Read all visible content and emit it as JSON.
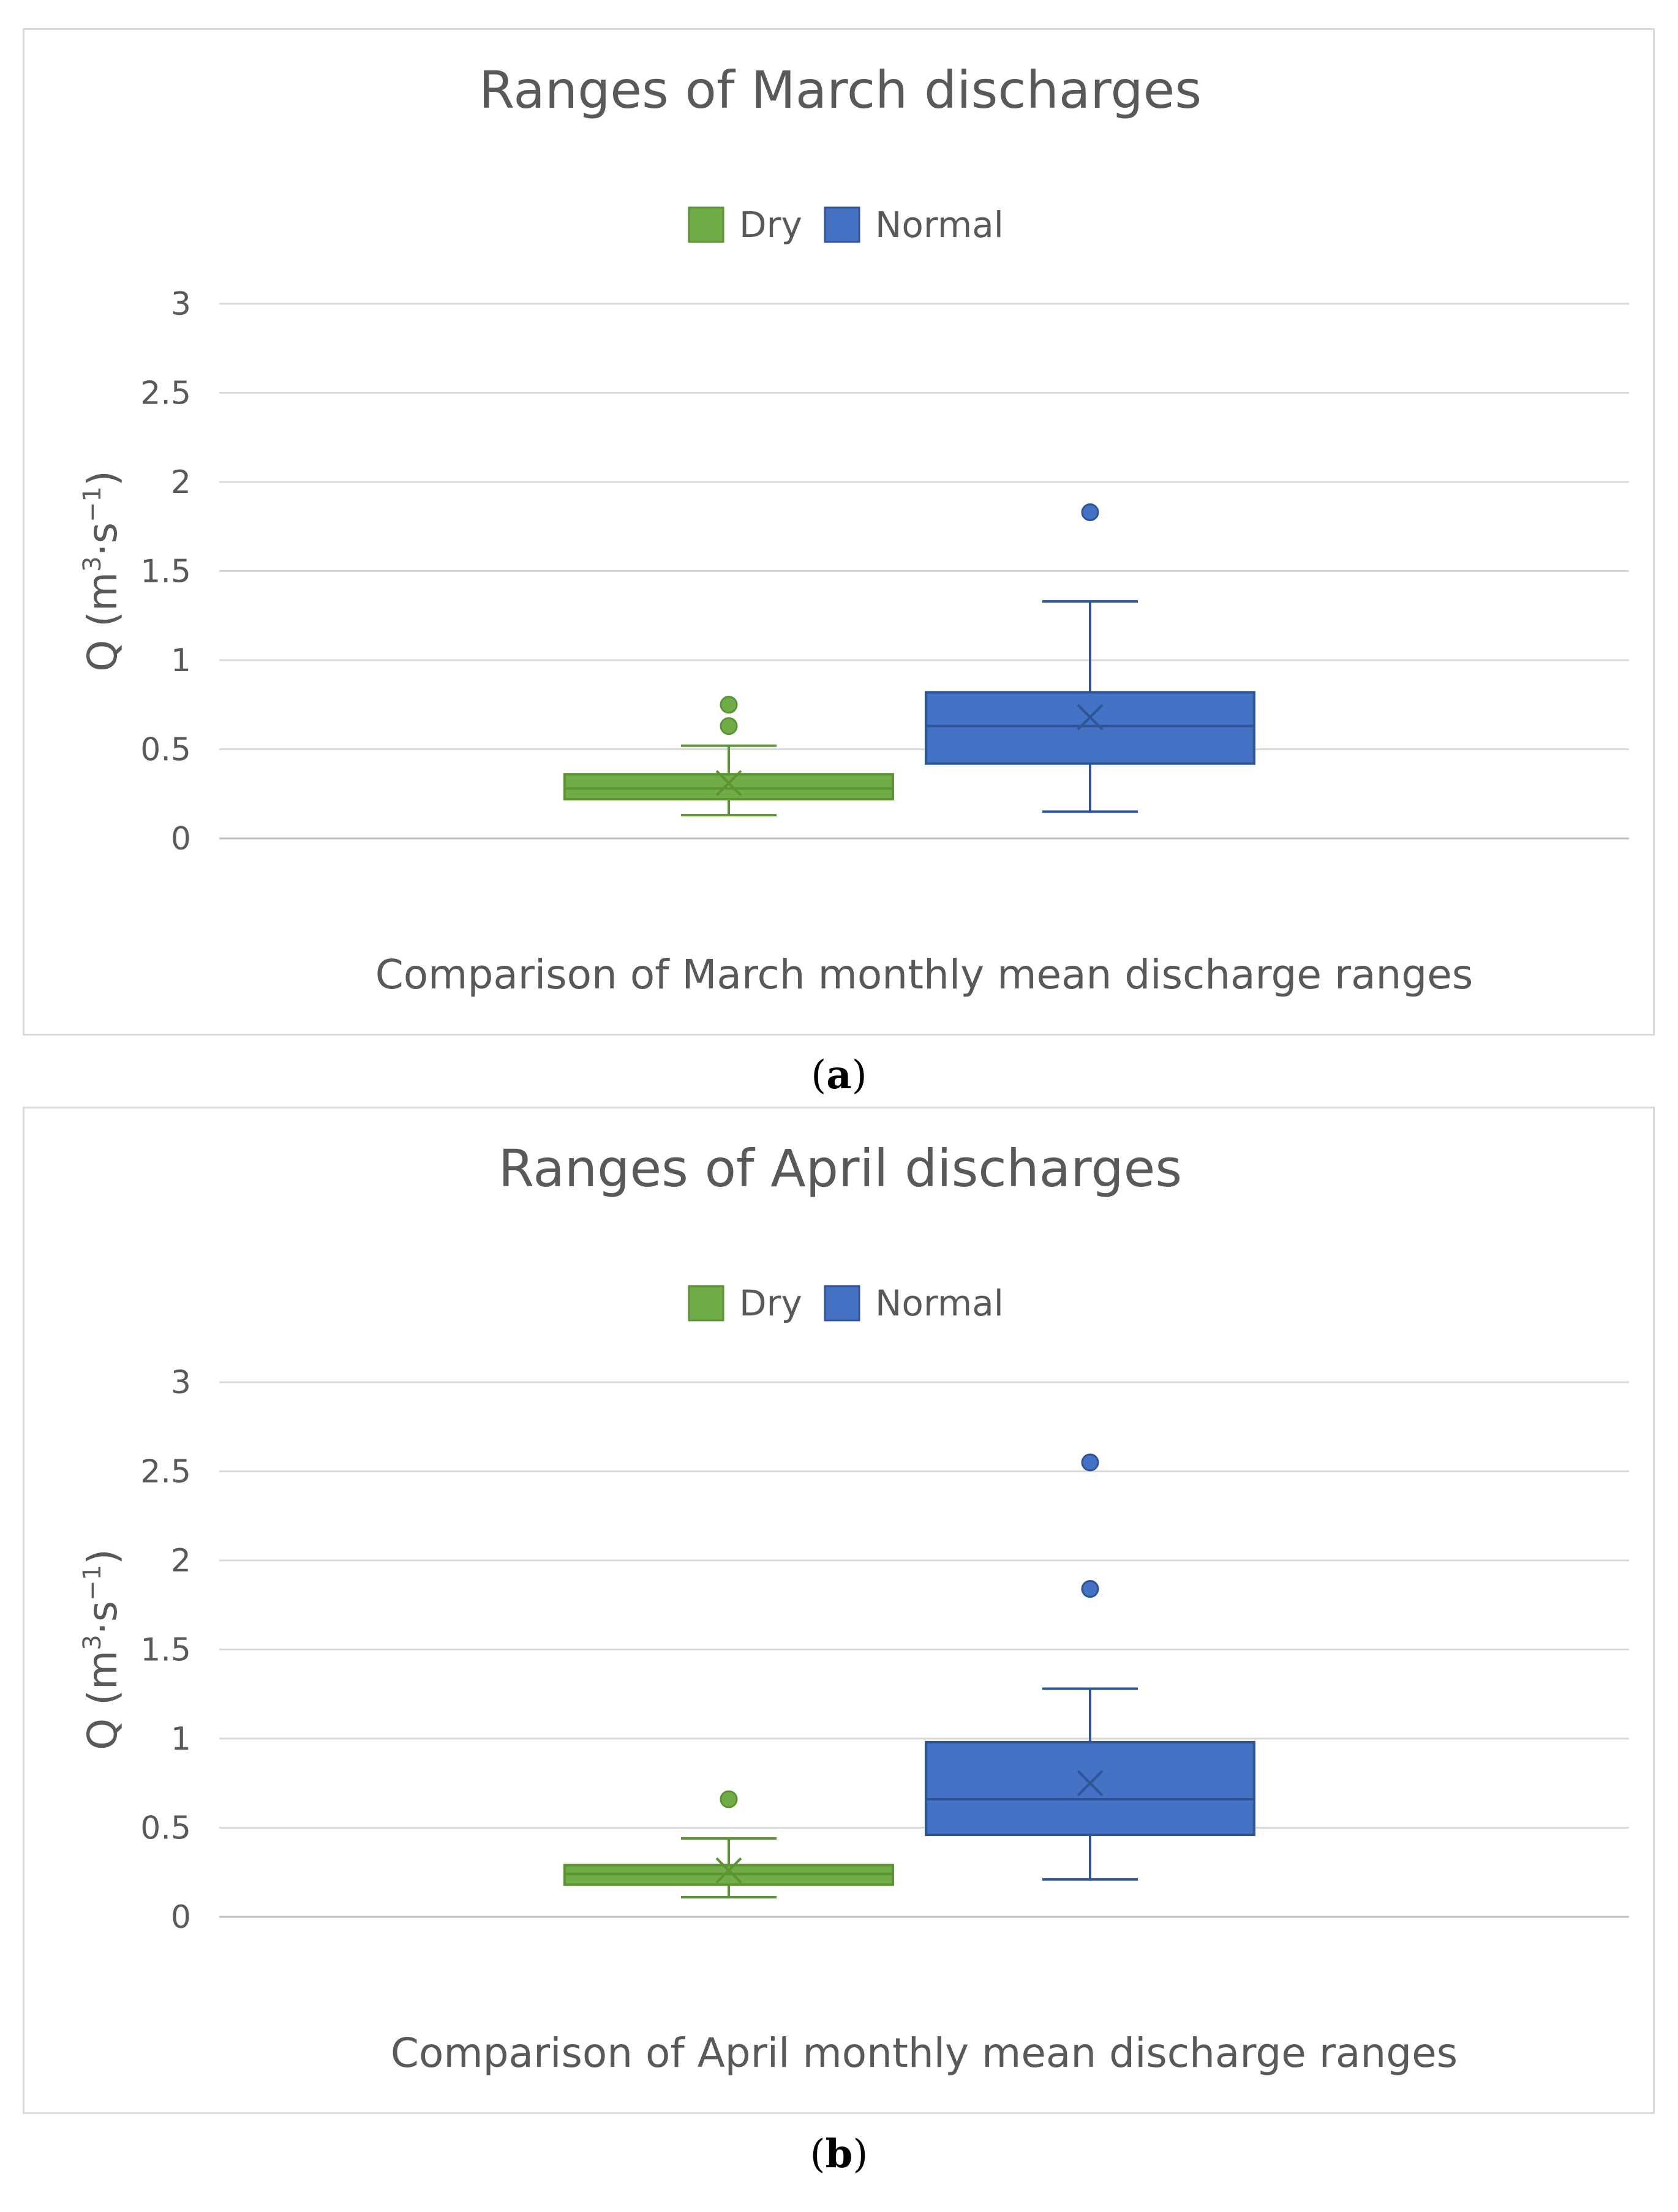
{
  "chart_data": [
    {
      "type": "box",
      "panel": "a",
      "title": "Ranges of March discharges",
      "xlabel": "Comparison of March monthly mean discharge ranges",
      "ylabel": "Q (m³·s⁻¹)",
      "ylabel_parts": {
        "base": "Q (m",
        "sup1": "3",
        "mid": "·s",
        "sup2": "−1",
        "end": ")"
      },
      "ylim": [
        0,
        3
      ],
      "yticks": [
        0,
        0.5,
        1,
        1.5,
        2,
        2.5,
        3
      ],
      "ytick_labels": [
        "0",
        "0.5",
        "1",
        "1.5",
        "2",
        "2.5",
        "3"
      ],
      "grid": true,
      "legend_position": "top-center",
      "series": [
        {
          "name": "Dry",
          "color": "#70ad47",
          "edge": "#5b9335",
          "min": 0.13,
          "q1": 0.22,
          "median": 0.28,
          "q3": 0.36,
          "max": 0.52,
          "mean": 0.31,
          "outliers": [
            0.63,
            0.75
          ]
        },
        {
          "name": "Normal",
          "color": "#4472c4",
          "edge": "#2f5597",
          "min": 0.15,
          "q1": 0.42,
          "median": 0.63,
          "q3": 0.82,
          "max": 1.33,
          "mean": 0.68,
          "outliers": [
            1.83
          ]
        }
      ],
      "caption": "a"
    },
    {
      "type": "box",
      "panel": "b",
      "title": "Ranges of April discharges",
      "xlabel": "Comparison of April monthly mean discharge ranges",
      "ylabel": "Q (m³·s⁻¹)",
      "ylabel_parts": {
        "base": "Q (m",
        "sup1": "3",
        "mid": "·s",
        "sup2": "−1",
        "end": ")"
      },
      "ylim": [
        0,
        3
      ],
      "yticks": [
        0,
        0.5,
        1,
        1.5,
        2,
        2.5,
        3
      ],
      "ytick_labels": [
        "0",
        "0.5",
        "1",
        "1.5",
        "2",
        "2.5",
        "3"
      ],
      "grid": true,
      "legend_position": "top-center",
      "series": [
        {
          "name": "Dry",
          "color": "#70ad47",
          "edge": "#5b9335",
          "min": 0.11,
          "q1": 0.18,
          "median": 0.24,
          "q3": 0.29,
          "max": 0.44,
          "mean": 0.26,
          "outliers": [
            0.66
          ]
        },
        {
          "name": "Normal",
          "color": "#4472c4",
          "edge": "#2f5597",
          "min": 0.21,
          "q1": 0.46,
          "median": 0.66,
          "q3": 0.98,
          "max": 1.28,
          "mean": 0.75,
          "outliers": [
            1.84,
            2.55
          ]
        }
      ],
      "caption": "b"
    }
  ]
}
